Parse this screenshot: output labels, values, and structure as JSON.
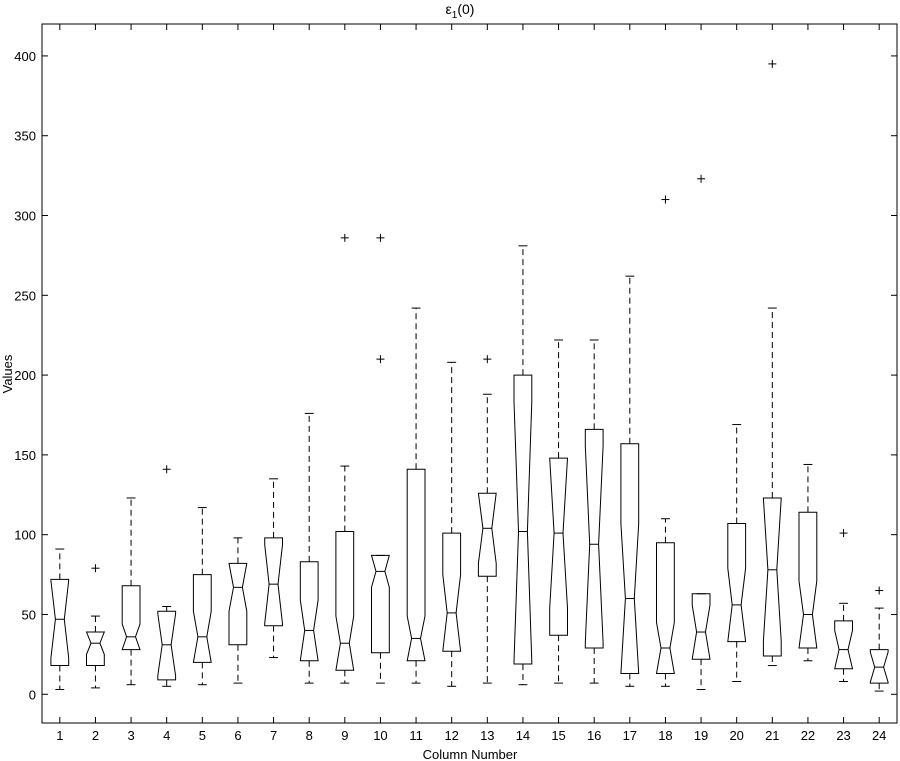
{
  "chart_data": {
    "type": "boxplot",
    "title": {
      "main": "ε",
      "sub": "1",
      "suffix": "(0)"
    },
    "xlabel": "Column Number",
    "ylabel": "Values",
    "ylim": [
      -18,
      420
    ],
    "yticks": [
      0,
      50,
      100,
      150,
      200,
      250,
      300,
      350,
      400
    ],
    "notched": true,
    "grid": false,
    "categories": [
      "1",
      "2",
      "3",
      "4",
      "5",
      "6",
      "7",
      "8",
      "9",
      "10",
      "11",
      "12",
      "13",
      "14",
      "15",
      "16",
      "17",
      "18",
      "19",
      "20",
      "21",
      "22",
      "23",
      "24"
    ],
    "boxes": [
      {
        "whislo": 3,
        "q1": 18,
        "med": 47,
        "q3": 72,
        "whishi": 91,
        "outliers": []
      },
      {
        "whislo": 4,
        "q1": 18,
        "med": 32,
        "q3": 39,
        "whishi": 49,
        "outliers": [
          79
        ]
      },
      {
        "whislo": 6,
        "q1": 28,
        "med": 36,
        "q3": 68,
        "whishi": 123,
        "outliers": []
      },
      {
        "whislo": 5,
        "q1": 9,
        "med": 31,
        "q3": 52,
        "whishi": 55,
        "outliers": [
          141
        ]
      },
      {
        "whislo": 6,
        "q1": 20,
        "med": 36,
        "q3": 75,
        "whishi": 117,
        "outliers": []
      },
      {
        "whislo": 7,
        "q1": 31,
        "med": 67,
        "q3": 82,
        "whishi": 98,
        "outliers": []
      },
      {
        "whislo": 23,
        "q1": 43,
        "med": 69,
        "q3": 98,
        "whishi": 135,
        "outliers": []
      },
      {
        "whislo": 7,
        "q1": 21,
        "med": 40,
        "q3": 83,
        "whishi": 176,
        "outliers": []
      },
      {
        "whislo": 7,
        "q1": 15,
        "med": 32,
        "q3": 102,
        "whishi": 143,
        "outliers": [
          286
        ]
      },
      {
        "whislo": 7,
        "q1": 26,
        "med": 77,
        "q3": 87,
        "whishi": 87,
        "outliers": [
          210,
          286
        ]
      },
      {
        "whislo": 7,
        "q1": 21,
        "med": 35,
        "q3": 141,
        "whishi": 242,
        "outliers": []
      },
      {
        "whislo": 5,
        "q1": 27,
        "med": 51,
        "q3": 101,
        "whishi": 208,
        "outliers": []
      },
      {
        "whislo": 7,
        "q1": 74,
        "med": 104,
        "q3": 126,
        "whishi": 188,
        "outliers": [
          210
        ]
      },
      {
        "whislo": 6,
        "q1": 19,
        "med": 102,
        "q3": 200,
        "whishi": 281,
        "outliers": []
      },
      {
        "whislo": 7,
        "q1": 37,
        "med": 101,
        "q3": 148,
        "whishi": 222,
        "outliers": []
      },
      {
        "whislo": 7,
        "q1": 29,
        "med": 94,
        "q3": 166,
        "whishi": 222,
        "outliers": []
      },
      {
        "whislo": 5,
        "q1": 13,
        "med": 60,
        "q3": 157,
        "whishi": 262,
        "outliers": []
      },
      {
        "whislo": 5,
        "q1": 13,
        "med": 29,
        "q3": 95,
        "whishi": 110,
        "outliers": [
          310
        ]
      },
      {
        "whislo": 3,
        "q1": 22,
        "med": 39,
        "q3": 63,
        "whishi": 63,
        "outliers": [
          323
        ]
      },
      {
        "whislo": 8,
        "q1": 33,
        "med": 56,
        "q3": 107,
        "whishi": 169,
        "outliers": []
      },
      {
        "whislo": 18,
        "q1": 24,
        "med": 78,
        "q3": 123,
        "whishi": 242,
        "outliers": [
          395
        ]
      },
      {
        "whislo": 21,
        "q1": 29,
        "med": 50,
        "q3": 114,
        "whishi": 144,
        "outliers": []
      },
      {
        "whislo": 8,
        "q1": 16,
        "med": 28,
        "q3": 46,
        "whishi": 57,
        "outliers": [
          101
        ]
      },
      {
        "whislo": 2,
        "q1": 7,
        "med": 17,
        "q3": 28,
        "whishi": 54,
        "outliers": [
          65
        ]
      }
    ]
  }
}
